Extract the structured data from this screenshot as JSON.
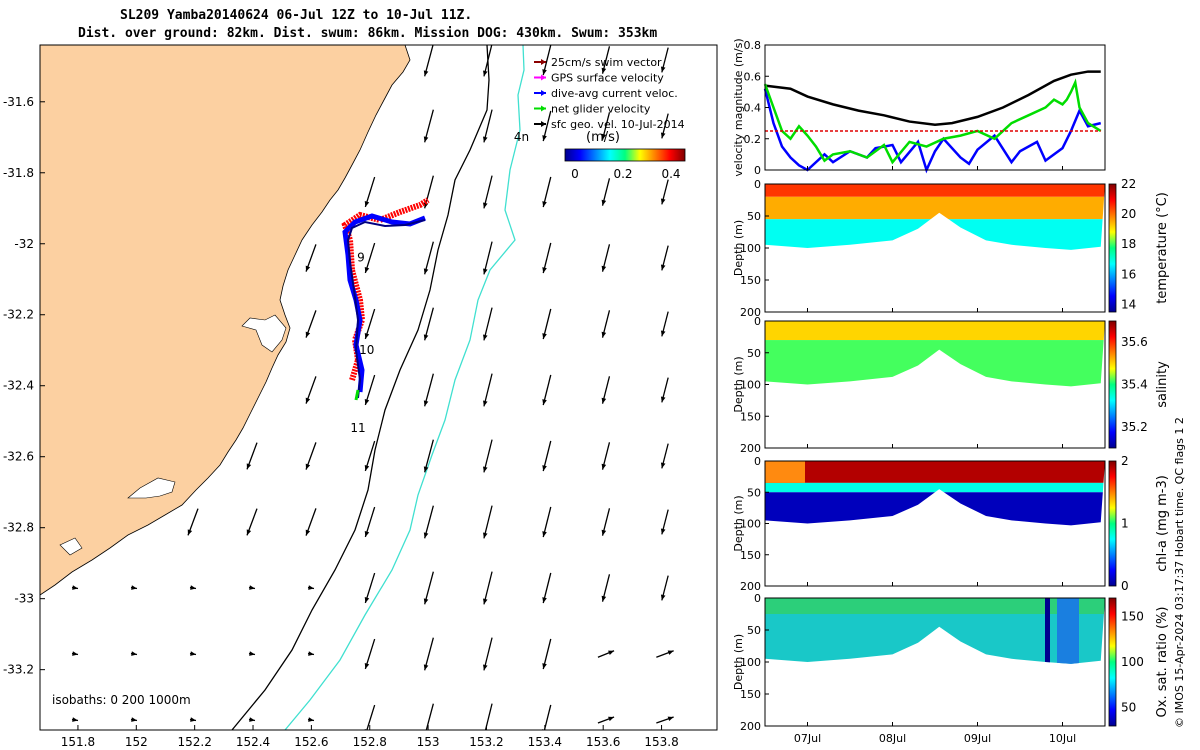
{
  "title": {
    "line1": "SL209 Yamba20140624 06-Jul 12Z to 10-Jul 11Z.",
    "line2": "Dist. over ground: 82km. Dist. swum: 86km. Mission DOG: 430km. Swum: 353km"
  },
  "map": {
    "xticks": [
      "151.8",
      "152",
      "152.2",
      "152.4",
      "152.6",
      "152.8",
      "153",
      "153.2",
      "153.4",
      "153.6",
      "153.8"
    ],
    "xtick_values": [
      151.8,
      152.0,
      152.2,
      152.4,
      152.6,
      152.8,
      153.0,
      153.2,
      153.4,
      153.6,
      153.8
    ],
    "yticks": [
      "-31.6",
      "-31.8",
      "-32",
      "-32.2",
      "-32.4",
      "-32.6",
      "-32.8",
      "-33",
      "-33.2"
    ],
    "ytick_values": [
      -31.6,
      -31.8,
      -32.0,
      -32.2,
      -32.4,
      -32.6,
      -32.8,
      -33.0,
      -33.2
    ],
    "xlim": [
      151.67,
      153.99
    ],
    "ylim": [
      -33.37,
      -31.44
    ],
    "legend": [
      {
        "label": "25cm/s swim vector",
        "color": "#8b0000"
      },
      {
        "label": "GPS surface velocity",
        "color": "#ff00ff"
      },
      {
        "label": "dive-avg current veloc.",
        "color": "#0000ff"
      },
      {
        "label": "net glider velocity",
        "color": "#00dd00"
      },
      {
        "label": "sfc geo. vel. 10-Jul-2014",
        "color": "#000000"
      }
    ],
    "colorbar_title": "(m/s)",
    "colorbar_ticks": [
      "0",
      "0.2",
      "0.4"
    ],
    "day_labels": [
      {
        "text": "4n",
        "lon": 153.32,
        "lat": -31.71
      },
      {
        "text": "9",
        "lon": 152.77,
        "lat": -32.05
      },
      {
        "text": "10",
        "lon": 152.79,
        "lat": -32.31
      },
      {
        "text": "11",
        "lon": 152.76,
        "lat": -32.53
      }
    ],
    "isobaths_label": "isobaths: 0   200  1000m",
    "land_color": "#fcd0a1",
    "isobath_200_color": "#000000",
    "isobath_1000_color": "#40e0d0"
  },
  "chart_data": [
    {
      "type": "line",
      "ylabel": "velocity magnitude (m/s)",
      "ylim": [
        0,
        0.8
      ],
      "yticks": [
        "0",
        "0.2",
        "0.4",
        "0.6",
        "0.8"
      ],
      "xlim": [
        6.5,
        10.5
      ],
      "series": [
        {
          "color": "#000000",
          "x": [
            6.5,
            6.8,
            7.0,
            7.3,
            7.6,
            7.9,
            8.2,
            8.5,
            8.7,
            9.0,
            9.3,
            9.6,
            9.9,
            10.1,
            10.3,
            10.45
          ],
          "values": [
            0.54,
            0.52,
            0.47,
            0.42,
            0.38,
            0.35,
            0.31,
            0.29,
            0.3,
            0.34,
            0.4,
            0.48,
            0.57,
            0.61,
            0.63,
            0.63
          ]
        },
        {
          "color": "#0000ff",
          "x": [
            6.5,
            6.6,
            6.7,
            6.8,
            6.9,
            7.0,
            7.2,
            7.3,
            7.5,
            7.7,
            7.8,
            8.0,
            8.1,
            8.3,
            8.4,
            8.5,
            8.6,
            8.8,
            8.9,
            9.0,
            9.2,
            9.4,
            9.5,
            9.7,
            9.8,
            10.0,
            10.1,
            10.2,
            10.3,
            10.45
          ],
          "values": [
            0.52,
            0.3,
            0.15,
            0.08,
            0.03,
            0.0,
            0.1,
            0.05,
            0.12,
            0.08,
            0.14,
            0.16,
            0.05,
            0.18,
            0.0,
            0.12,
            0.2,
            0.08,
            0.04,
            0.13,
            0.22,
            0.05,
            0.12,
            0.18,
            0.06,
            0.14,
            0.25,
            0.38,
            0.28,
            0.3
          ]
        },
        {
          "color": "#00dd00",
          "x": [
            6.5,
            6.6,
            6.7,
            6.8,
            6.9,
            7.0,
            7.1,
            7.2,
            7.3,
            7.5,
            7.7,
            7.9,
            8.0,
            8.2,
            8.4,
            8.6,
            8.8,
            9.0,
            9.2,
            9.4,
            9.6,
            9.8,
            9.9,
            10.0,
            10.05,
            10.1,
            10.15,
            10.2,
            10.3,
            10.45
          ],
          "values": [
            0.55,
            0.4,
            0.25,
            0.2,
            0.28,
            0.22,
            0.15,
            0.06,
            0.1,
            0.12,
            0.08,
            0.16,
            0.05,
            0.18,
            0.15,
            0.2,
            0.22,
            0.25,
            0.2,
            0.3,
            0.35,
            0.4,
            0.45,
            0.42,
            0.45,
            0.5,
            0.56,
            0.4,
            0.3,
            0.25
          ]
        },
        {
          "color": "#e00000",
          "x": [
            6.5,
            10.45
          ],
          "values": [
            0.25,
            0.25
          ]
        }
      ]
    },
    {
      "type": "heatmap",
      "ylabel": "Depth (m)",
      "clabel": "temperature (°C)",
      "yticks": [
        "0",
        "50",
        "100",
        "150",
        "200"
      ],
      "ylim": [
        200,
        0
      ],
      "clim": [
        13.5,
        22
      ],
      "cticks": [
        "14",
        "16",
        "18",
        "20",
        "22"
      ],
      "xlim": [
        6.5,
        10.5
      ],
      "profile_bottom_depth": {
        "x": [
          6.5,
          7.0,
          7.5,
          8.0,
          8.3,
          8.55,
          8.8,
          9.1,
          9.4,
          9.8,
          10.1,
          10.45
        ],
        "values": [
          95,
          100,
          95,
          88,
          70,
          45,
          68,
          88,
          95,
          100,
          103,
          98
        ]
      },
      "layers": [
        {
          "depth_top": 0,
          "depth_bottom": 20,
          "value": 20.5
        },
        {
          "depth_top": 20,
          "depth_bottom": 55,
          "value": 19.5
        },
        {
          "depth_top": 55,
          "depth_bottom": 110,
          "value": 16.8
        }
      ]
    },
    {
      "type": "heatmap",
      "ylabel": "Depth (m)",
      "clabel": "salinity",
      "yticks": [
        "0",
        "50",
        "100",
        "150",
        "200"
      ],
      "ylim": [
        200,
        0
      ],
      "clim": [
        35.1,
        35.7
      ],
      "cticks": [
        "35.2",
        "35.4",
        "35.6"
      ],
      "xlim": [
        6.5,
        10.5
      ],
      "profile_bottom_depth": {
        "x": [
          6.5,
          7.0,
          7.5,
          8.0,
          8.3,
          8.55,
          8.8,
          9.1,
          9.4,
          9.8,
          10.1,
          10.45
        ],
        "values": [
          95,
          100,
          95,
          88,
          70,
          45,
          68,
          88,
          95,
          100,
          103,
          98
        ]
      },
      "layers": [
        {
          "depth_top": 0,
          "depth_bottom": 30,
          "value": 35.5
        },
        {
          "depth_top": 30,
          "depth_bottom": 110,
          "value": 35.42
        }
      ]
    },
    {
      "type": "heatmap",
      "ylabel": "Depth (m)",
      "clabel": "chl-a (mg m-3)",
      "yticks": [
        "0",
        "50",
        "100",
        "150",
        "200"
      ],
      "ylim": [
        200,
        0
      ],
      "clim": [
        0,
        2
      ],
      "cticks": [
        "0",
        "1",
        "2"
      ],
      "xlim": [
        6.5,
        10.5
      ],
      "profile_bottom_depth": {
        "x": [
          6.5,
          7.0,
          7.5,
          8.0,
          8.3,
          8.55,
          8.8,
          9.1,
          9.4,
          9.8,
          10.1,
          10.45
        ],
        "values": [
          95,
          100,
          95,
          88,
          70,
          45,
          68,
          88,
          95,
          100,
          103,
          98
        ]
      },
      "layers": [
        {
          "depth_top": 0,
          "depth_bottom": 35,
          "value": 1.9
        },
        {
          "depth_top": 35,
          "depth_bottom": 50,
          "value": 0.8
        },
        {
          "depth_top": 50,
          "depth_bottom": 110,
          "value": 0.1
        }
      ]
    },
    {
      "type": "heatmap",
      "ylabel": "Depth (m)",
      "clabel": "Ox. sat. ratio (%)",
      "yticks": [
        "0",
        "50",
        "100",
        "150",
        "200"
      ],
      "ylim": [
        200,
        0
      ],
      "clim": [
        30,
        170
      ],
      "cticks": [
        "50",
        "100",
        "150"
      ],
      "xlim": [
        6.5,
        10.5
      ],
      "profile_bottom_depth": {
        "x": [
          6.5,
          7.0,
          7.5,
          8.0,
          8.3,
          8.55,
          8.8,
          9.1,
          9.4,
          9.8,
          10.1,
          10.45
        ],
        "values": [
          95,
          100,
          95,
          88,
          70,
          45,
          68,
          88,
          95,
          100,
          103,
          98
        ]
      },
      "layers": [
        {
          "depth_top": 0,
          "depth_bottom": 25,
          "value": 112
        },
        {
          "depth_top": 25,
          "depth_bottom": 110,
          "value": 102
        }
      ]
    }
  ],
  "shared_xticks": [
    {
      "label": "07Jul",
      "value": 7.0
    },
    {
      "label": "08Jul",
      "value": 8.0
    },
    {
      "label": "09Jul",
      "value": 9.0
    },
    {
      "label": "10Jul",
      "value": 10.0
    }
  ],
  "credit": "© IMOS 15-Apr-2024 03:17:37 Hobart time. QC flags 1  2"
}
